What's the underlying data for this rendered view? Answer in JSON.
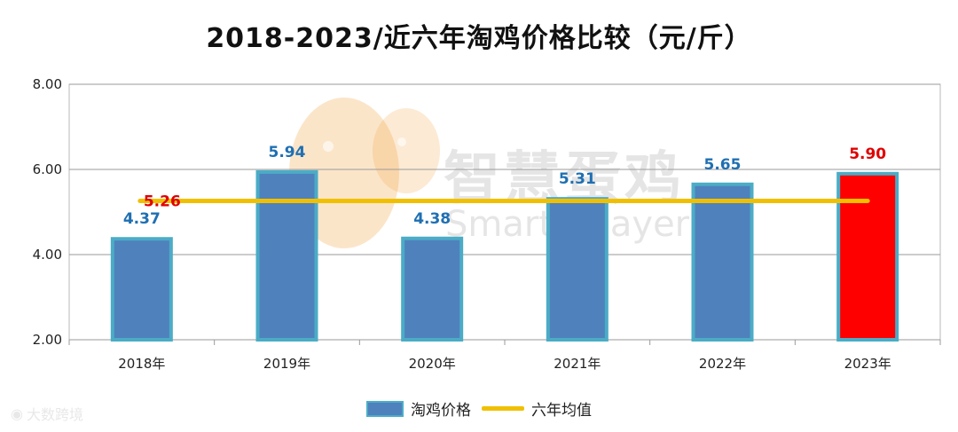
{
  "title": "2018-2023/近六年淘鸡价格比较（元/斤）",
  "watermark": {
    "cn": "智慧蛋鸡",
    "en": "Smarter layer"
  },
  "source": {
    "text": "大数跨境",
    "icon": "weibo-icon"
  },
  "colors": {
    "bar": "#4f81bd",
    "bar_border": "#4bacc6",
    "highlight": "#ff0000",
    "avg_line": "#f0c000",
    "label_blue": "#1f6fb2",
    "label_red": "#e00000"
  },
  "chart_data": {
    "type": "bar",
    "title": "2018-2023/近六年淘鸡价格比较（元/斤）",
    "categories": [
      "2018年",
      "2019年",
      "2020年",
      "2021年",
      "2022年",
      "2023年"
    ],
    "series": [
      {
        "name": "淘鸡价格",
        "values": [
          4.37,
          5.94,
          4.38,
          5.31,
          5.65,
          5.9
        ],
        "labels": [
          "4.37",
          "5.94",
          "4.38",
          "5.31",
          "5.65",
          "5.90"
        ]
      },
      {
        "name": "六年均值",
        "type": "line",
        "value": 5.26,
        "label": "5.26"
      }
    ],
    "highlight_category": "2023年",
    "ylim": [
      2.0,
      8.0
    ],
    "yticks": [
      "2.00",
      "4.00",
      "6.00",
      "8.00"
    ],
    "xlabel": "",
    "ylabel": "",
    "grid": true,
    "legend_position": "bottom"
  }
}
